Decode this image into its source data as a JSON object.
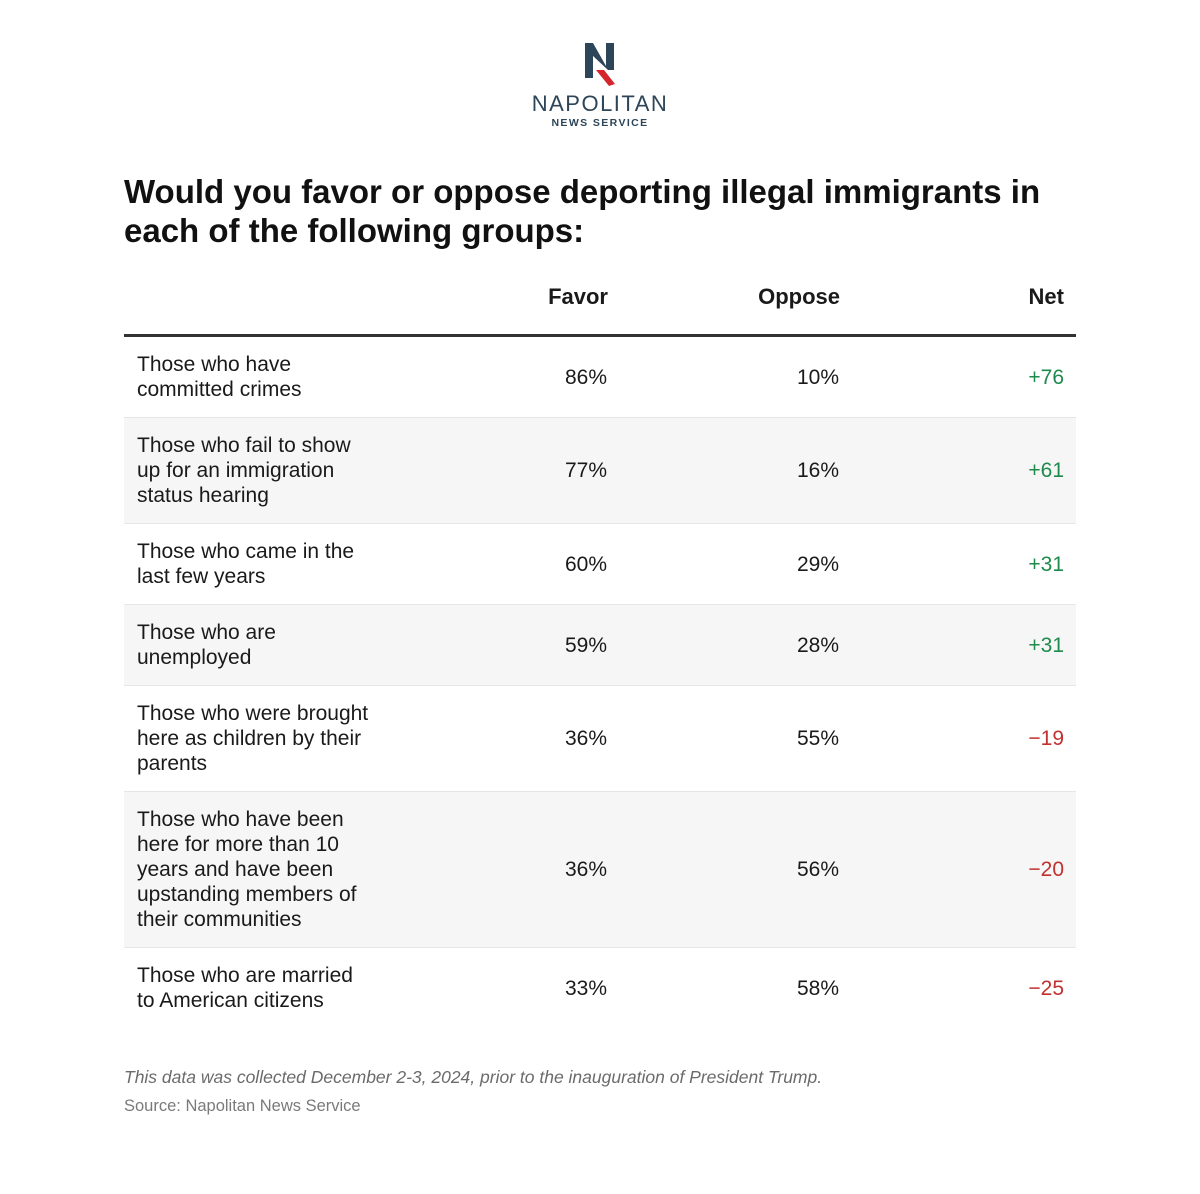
{
  "brand": {
    "name": "NAPOLITAN",
    "sub": "NEWS SERVICE",
    "navy": "#2d4559",
    "red": "#d6262d"
  },
  "chart_data": {
    "type": "table",
    "title": "Would you favor or oppose deporting illegal immigrants in each of the following groups:",
    "columns": [
      "",
      "Favor",
      "Oppose",
      "Net"
    ],
    "rows": [
      {
        "group": "Those who have committed crimes",
        "favor": "86%",
        "oppose": "10%",
        "net": "+76",
        "net_value": 76
      },
      {
        "group": "Those who fail to show up for an immigration status hearing",
        "favor": "77%",
        "oppose": "16%",
        "net": "+61",
        "net_value": 61
      },
      {
        "group": "Those who came in the last few years",
        "favor": "60%",
        "oppose": "29%",
        "net": "+31",
        "net_value": 31
      },
      {
        "group": "Those who are unemployed",
        "favor": "59%",
        "oppose": "28%",
        "net": "+31",
        "net_value": 31
      },
      {
        "group": "Those who were brought here as children by their parents",
        "favor": "36%",
        "oppose": "55%",
        "net": "−19",
        "net_value": -19
      },
      {
        "group": "Those who have been here for more than 10 years and have been upstanding members of their communities",
        "favor": "36%",
        "oppose": "56%",
        "net": "−20",
        "net_value": -20
      },
      {
        "group": "Those who are married to American citizens",
        "favor": "33%",
        "oppose": "58%",
        "net": "−25",
        "net_value": -25
      }
    ],
    "colors": {
      "positive": "#1e8a4c",
      "negative": "#c0312f"
    }
  },
  "footer": {
    "note": "This data was collected December 2-3, 2024, prior to the inauguration of President Trump.",
    "source": "Source: Napolitan News Service"
  }
}
